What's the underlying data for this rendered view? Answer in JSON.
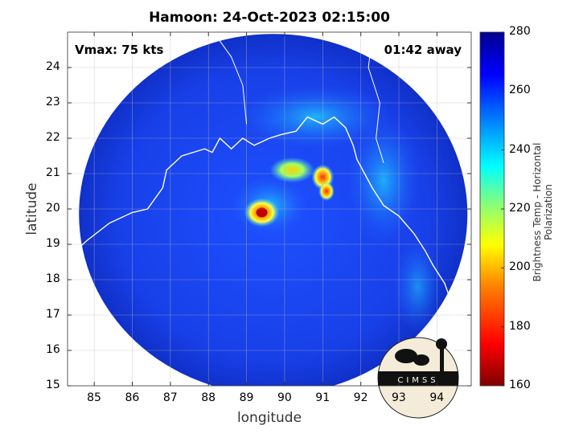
{
  "chart_data": {
    "type": "heatmap",
    "title": "Hamoon: 24-Oct-2023 02:15:00",
    "xlabel": "longitude",
    "ylabel": "latitude",
    "xlim": [
      84.3,
      94.9
    ],
    "ylim": [
      15,
      25
    ],
    "xticks": [
      85,
      86,
      87,
      88,
      89,
      90,
      91,
      92,
      93,
      94
    ],
    "yticks": [
      15,
      16,
      17,
      18,
      19,
      20,
      21,
      22,
      23,
      24
    ],
    "grid": true,
    "annotations": {
      "vmax": "Vmax: 75 kts",
      "time_away": "01:42 away"
    },
    "colorbar": {
      "label": "Brightness Temp - Horizontal Polarization",
      "range": [
        160,
        280
      ],
      "ticks": [
        160,
        180,
        200,
        220,
        240,
        260,
        280
      ],
      "colors": [
        "#800000",
        "#ff0000",
        "#ff8000",
        "#ffff00",
        "#80ff80",
        "#00ffff",
        "#0080ff",
        "#0000ff",
        "#00008f"
      ]
    },
    "swath": {
      "center_lon": 89.7,
      "center_lat": 19.85,
      "radius_deg": 5.1
    },
    "cyclone_center": {
      "lon": 89.4,
      "lat": 19.9,
      "min_temp": 180
    },
    "features": [
      {
        "name": "eyewall",
        "lon": 89.4,
        "lat": 19.9,
        "temp": 185
      },
      {
        "name": "rainband-north-1",
        "lon": 90.2,
        "lat": 21.1,
        "temp": 210
      },
      {
        "name": "rainband-north-2",
        "lon": 91.0,
        "lat": 20.9,
        "temp": 195
      },
      {
        "name": "rainband-east",
        "lon": 91.1,
        "lat": 20.5,
        "temp": 200
      },
      {
        "name": "land-bangladesh",
        "lon": 90.5,
        "lat": 22.5,
        "temp": 245
      },
      {
        "name": "land-myanmar",
        "lon": 93.0,
        "lat": 20.0,
        "temp": 250
      },
      {
        "name": "background-ocean",
        "lon": 88.0,
        "lat": 18.0,
        "temp": 262
      }
    ],
    "logo_text": "CIMSS"
  }
}
